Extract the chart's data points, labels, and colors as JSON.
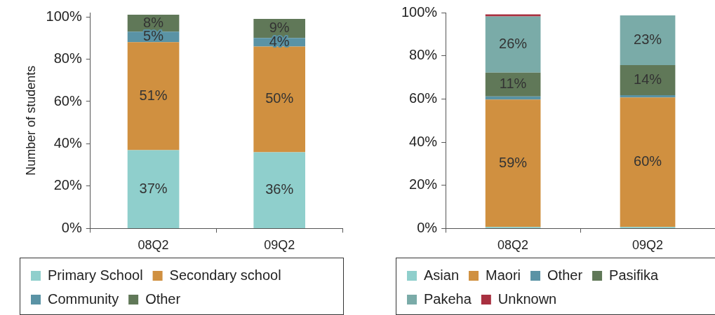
{
  "chart_data": [
    {
      "type": "bar",
      "stacked": true,
      "categories": [
        "08Q2",
        "09Q2"
      ],
      "ylabel": "Number of students",
      "ylim": [
        0,
        102
      ],
      "yticks": [
        {
          "value": 0,
          "label": "0%"
        },
        {
          "value": 20,
          "label": "20%"
        },
        {
          "value": 40,
          "label": "40%"
        },
        {
          "value": 60,
          "label": "60%"
        },
        {
          "value": 80,
          "label": "80%"
        },
        {
          "value": 100,
          "label": "100%"
        }
      ],
      "grid": false,
      "legend": "bottom",
      "series": [
        {
          "name": "Primary School",
          "color": "#8fcfcc",
          "values": [
            37,
            36
          ],
          "value_labels": [
            "37%",
            "36%"
          ]
        },
        {
          "name": "Secondary school",
          "color": "#d09040",
          "values": [
            51,
            50
          ],
          "value_labels": [
            "51%",
            "50%"
          ]
        },
        {
          "name": "Community",
          "color": "#5a93a5",
          "values": [
            5,
            4
          ],
          "value_labels": [
            "5%",
            "4%"
          ]
        },
        {
          "name": "Other",
          "color": "#607858",
          "values": [
            8,
            9
          ],
          "value_labels": [
            "8%",
            "9%"
          ]
        }
      ]
    },
    {
      "type": "bar",
      "stacked": true,
      "categories": [
        "08Q2",
        "09Q2"
      ],
      "ylim": [
        0,
        100
      ],
      "yticks": [
        {
          "value": 0,
          "label": "0%"
        },
        {
          "value": 20,
          "label": "20%"
        },
        {
          "value": 40,
          "label": "40%"
        },
        {
          "value": 60,
          "label": "60%"
        },
        {
          "value": 80,
          "label": "80%"
        },
        {
          "value": 100,
          "label": "100%"
        }
      ],
      "grid": false,
      "legend": "bottom",
      "series": [
        {
          "name": "Asian",
          "color": "#8fcfcc",
          "values": [
            0.7,
            0.7
          ],
          "value_labels": [
            null,
            null
          ]
        },
        {
          "name": "Maori",
          "color": "#d09040",
          "values": [
            59,
            60
          ],
          "value_labels": [
            "59%",
            "60%"
          ]
        },
        {
          "name": "Other",
          "color": "#5a93a5",
          "values": [
            1.5,
            1
          ],
          "value_labels": [
            null,
            null
          ]
        },
        {
          "name": "Pasifika",
          "color": "#607858",
          "values": [
            11,
            14
          ],
          "value_labels": [
            "11%",
            "14%"
          ]
        },
        {
          "name": "Pakeha",
          "color": "#7aaba8",
          "values": [
            26,
            23
          ],
          "value_labels": [
            "26%",
            "23%"
          ]
        },
        {
          "name": "Unknown",
          "color": "#a83040",
          "values": [
            1,
            0
          ],
          "value_labels": [
            null,
            null
          ]
        }
      ]
    }
  ]
}
